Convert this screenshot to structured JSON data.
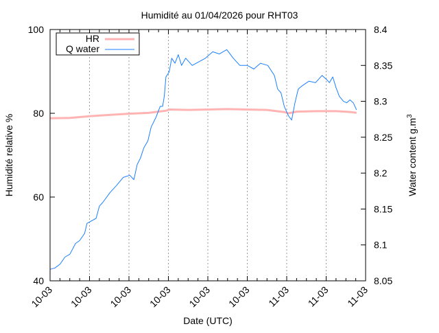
{
  "chart_data": {
    "type": "line",
    "title": "Humidité au 01/04/2026 pour RHT03",
    "xlabel": "Date (UTC)",
    "ylabel": "Humidité relative %",
    "y2label": "Water content g.m",
    "y2label_exponent": "3",
    "x_range": [
      "10-03 00:00",
      "11-03 08:00"
    ],
    "x_ticks": [
      {
        "t": "10-03 00:00",
        "label": "10-03"
      },
      {
        "t": "10-03 04:00",
        "label": "10-03"
      },
      {
        "t": "10-03 08:00",
        "label": "10-03"
      },
      {
        "t": "10-03 12:00",
        "label": "10-03"
      },
      {
        "t": "10-03 16:00",
        "label": "10-03"
      },
      {
        "t": "10-03 20:00",
        "label": "10-03"
      },
      {
        "t": "11-03 00:00",
        "label": "11-03"
      },
      {
        "t": "11-03 04:00",
        "label": "11-03"
      },
      {
        "t": "11-03 08:00",
        "label": "11-03"
      }
    ],
    "ylim": [
      40,
      100
    ],
    "y_ticks": [
      "40",
      "60",
      "80",
      "100"
    ],
    "y2lim": [
      8.05,
      8.4
    ],
    "y2_ticks": [
      "8.05",
      "8.1",
      "8.15",
      "8.2",
      "8.25",
      "8.3",
      "8.35",
      "8.4"
    ],
    "grid": "vertical dashed at x ticks",
    "legend_position": "top-left",
    "series": [
      {
        "name": "HR",
        "axis": "left",
        "color": "#ffb3b3",
        "points": [
          [
            "10-03 00:00",
            78.8
          ],
          [
            "10-03 02:00",
            78.9
          ],
          [
            "10-03 04:00",
            79.3
          ],
          [
            "10-03 06:00",
            79.6
          ],
          [
            "10-03 08:00",
            79.9
          ],
          [
            "10-03 10:00",
            80.1
          ],
          [
            "10-03 11:45",
            80.6
          ],
          [
            "10-03 12:05",
            80.9
          ],
          [
            "10-03 14:00",
            80.8
          ],
          [
            "10-03 16:00",
            80.9
          ],
          [
            "10-03 18:00",
            81.0
          ],
          [
            "10-03 20:00",
            80.9
          ],
          [
            "10-03 22:00",
            80.8
          ],
          [
            "10-03 23:45",
            80.3
          ],
          [
            "11-03 00:10",
            80.0
          ],
          [
            "11-03 01:00",
            80.4
          ],
          [
            "11-03 03:00",
            80.5
          ],
          [
            "11-03 05:00",
            80.5
          ],
          [
            "11-03 06:30",
            80.3
          ],
          [
            "11-03 07:05",
            80.1
          ]
        ]
      },
      {
        "name": "Q water",
        "axis": "right",
        "color": "#1a7fff",
        "points": [
          [
            "10-03 00:00",
            8.066
          ],
          [
            "10-03 00:30",
            8.068
          ],
          [
            "10-03 01:00",
            8.073
          ],
          [
            "10-03 01:30",
            8.083
          ],
          [
            "10-03 02:00",
            8.087
          ],
          [
            "10-03 02:35",
            8.102
          ],
          [
            "10-03 03:00",
            8.106
          ],
          [
            "10-03 03:30",
            8.116
          ],
          [
            "10-03 03:45",
            8.13
          ],
          [
            "10-03 04:00",
            8.132
          ],
          [
            "10-03 04:40",
            8.137
          ],
          [
            "10-03 05:00",
            8.154
          ],
          [
            "10-03 05:20",
            8.159
          ],
          [
            "10-03 06:05",
            8.173
          ],
          [
            "10-03 06:45",
            8.183
          ],
          [
            "10-03 07:25",
            8.194
          ],
          [
            "10-03 08:05",
            8.197
          ],
          [
            "10-03 08:30",
            8.191
          ],
          [
            "10-03 08:50",
            8.212
          ],
          [
            "10-03 09:10",
            8.221
          ],
          [
            "10-03 09:30",
            8.235
          ],
          [
            "10-03 09:55",
            8.245
          ],
          [
            "10-03 10:15",
            8.264
          ],
          [
            "10-03 10:45",
            8.278
          ],
          [
            "10-03 11:10",
            8.293
          ],
          [
            "10-03 11:25",
            8.293
          ],
          [
            "10-03 11:35",
            8.307
          ],
          [
            "10-03 11:45",
            8.334
          ],
          [
            "10-03 12:05",
            8.341
          ],
          [
            "10-03 12:20",
            8.36
          ],
          [
            "10-03 12:40",
            8.353
          ],
          [
            "10-03 13:00",
            8.365
          ],
          [
            "10-03 13:20",
            8.35
          ],
          [
            "10-03 13:45",
            8.36
          ],
          [
            "10-03 14:25",
            8.35
          ],
          [
            "10-03 15:05",
            8.355
          ],
          [
            "10-03 15:45",
            8.36
          ],
          [
            "10-03 16:30",
            8.369
          ],
          [
            "10-03 17:10",
            8.366
          ],
          [
            "10-03 17:55",
            8.372
          ],
          [
            "10-03 18:35",
            8.36
          ],
          [
            "10-03 19:15",
            8.35
          ],
          [
            "10-03 20:00",
            8.35
          ],
          [
            "10-03 20:40",
            8.345
          ],
          [
            "10-03 21:20",
            8.353
          ],
          [
            "10-03 22:05",
            8.35
          ],
          [
            "10-03 22:45",
            8.336
          ],
          [
            "10-03 23:05",
            8.317
          ],
          [
            "10-03 23:25",
            8.312
          ],
          [
            "10-03 23:45",
            8.293
          ],
          [
            "11-03 00:10",
            8.28
          ],
          [
            "11-03 00:30",
            8.274
          ],
          [
            "11-03 00:50",
            8.298
          ],
          [
            "11-03 01:10",
            8.317
          ],
          [
            "11-03 01:30",
            8.321
          ],
          [
            "11-03 02:15",
            8.328
          ],
          [
            "11-03 02:55",
            8.326
          ],
          [
            "11-03 03:35",
            8.336
          ],
          [
            "11-03 04:00",
            8.331
          ],
          [
            "11-03 04:20",
            8.326
          ],
          [
            "11-03 04:40",
            8.334
          ],
          [
            "11-03 05:00",
            8.319
          ],
          [
            "11-03 05:20",
            8.307
          ],
          [
            "11-03 05:45",
            8.3
          ],
          [
            "11-03 06:05",
            8.298
          ],
          [
            "11-03 06:25",
            8.302
          ],
          [
            "11-03 06:45",
            8.298
          ],
          [
            "11-03 07:05",
            8.288
          ]
        ]
      }
    ]
  }
}
